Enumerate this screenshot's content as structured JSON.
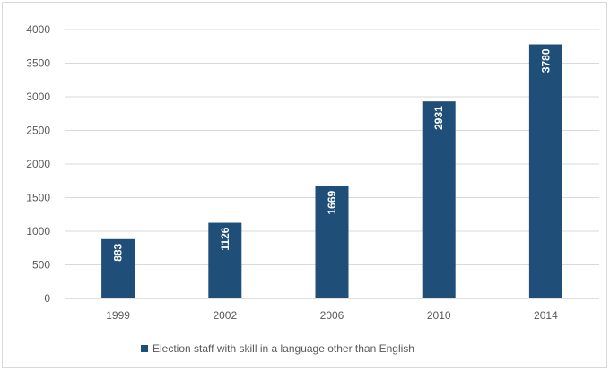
{
  "chart_data": {
    "type": "bar",
    "categories": [
      "1999",
      "2002",
      "2006",
      "2010",
      "2014"
    ],
    "series": [
      {
        "name": "Election staff with skill in a language other than English",
        "values": [
          883,
          1126,
          1669,
          2931,
          3780
        ],
        "color": "#1f4e79"
      }
    ],
    "y_ticks": [
      "0",
      "500",
      "1000",
      "1500",
      "2000",
      "2500",
      "3000",
      "3500",
      "4000"
    ],
    "data_labels": [
      "883",
      "1126",
      "1669",
      "2931",
      "3780"
    ],
    "ylim": [
      0,
      4000
    ],
    "grid": true,
    "legend_position": "bottom",
    "colors": {
      "bar": "#1f4e79",
      "grid": "#d9d9d9",
      "text": "#595959"
    }
  }
}
